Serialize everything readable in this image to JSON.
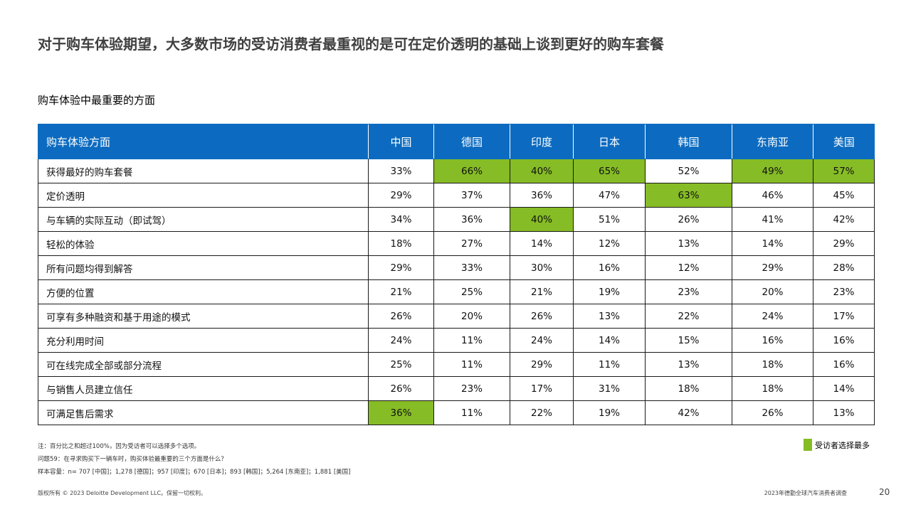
{
  "title": "对于购车体验期望，大多数市场的受访消费者最重视的是可在定价透明的基础上谈到更好的购车套餐",
  "subtitle": "购车体验中最重要的方面",
  "colors": {
    "header_bg": "#0c6bc0",
    "highlight": "#86bc25"
  },
  "table": {
    "headers": [
      "购车体验方面",
      "中国",
      "德国",
      "印度",
      "日本",
      "韩国",
      "东南亚",
      "美国"
    ],
    "rows": [
      {
        "label": "获得最好的购车套餐",
        "values": [
          "33%",
          "66%",
          "40%",
          "65%",
          "52%",
          "49%",
          "57%"
        ],
        "highlight": [
          false,
          true,
          true,
          true,
          false,
          true,
          true
        ]
      },
      {
        "label": "定价透明",
        "values": [
          "29%",
          "37%",
          "36%",
          "47%",
          "63%",
          "46%",
          "45%"
        ],
        "highlight": [
          false,
          false,
          false,
          false,
          true,
          false,
          false
        ]
      },
      {
        "label": "与车辆的实际互动（即试驾）",
        "values": [
          "34%",
          "36%",
          "40%",
          "51%",
          "26%",
          "41%",
          "42%"
        ],
        "highlight": [
          false,
          false,
          true,
          false,
          false,
          false,
          false
        ]
      },
      {
        "label": "轻松的体验",
        "values": [
          "18%",
          "27%",
          "14%",
          "12%",
          "13%",
          "14%",
          "29%"
        ],
        "highlight": [
          false,
          false,
          false,
          false,
          false,
          false,
          false
        ]
      },
      {
        "label": "所有问题均得到解答",
        "values": [
          "29%",
          "33%",
          "30%",
          "16%",
          "12%",
          "29%",
          "28%"
        ],
        "highlight": [
          false,
          false,
          false,
          false,
          false,
          false,
          false
        ]
      },
      {
        "label": "方便的位置",
        "values": [
          "21%",
          "25%",
          "21%",
          "19%",
          "23%",
          "20%",
          "23%"
        ],
        "highlight": [
          false,
          false,
          false,
          false,
          false,
          false,
          false
        ]
      },
      {
        "label": "可享有多种融资和基于用途的模式",
        "values": [
          "26%",
          "20%",
          "26%",
          "13%",
          "22%",
          "24%",
          "17%"
        ],
        "highlight": [
          false,
          false,
          false,
          false,
          false,
          false,
          false
        ]
      },
      {
        "label": "充分利用时间",
        "values": [
          "24%",
          "11%",
          "24%",
          "14%",
          "15%",
          "16%",
          "16%"
        ],
        "highlight": [
          false,
          false,
          false,
          false,
          false,
          false,
          false
        ]
      },
      {
        "label": "可在线完成全部或部分流程",
        "values": [
          "25%",
          "11%",
          "29%",
          "11%",
          "13%",
          "18%",
          "16%"
        ],
        "highlight": [
          false,
          false,
          false,
          false,
          false,
          false,
          false
        ]
      },
      {
        "label": "与销售人员建立信任",
        "values": [
          "26%",
          "23%",
          "17%",
          "31%",
          "18%",
          "18%",
          "14%"
        ],
        "highlight": [
          false,
          false,
          false,
          false,
          false,
          false,
          false
        ]
      },
      {
        "label": "可满足售后需求",
        "values": [
          "36%",
          "11%",
          "22%",
          "19%",
          "42%",
          "26%",
          "13%"
        ],
        "highlight": [
          true,
          false,
          false,
          false,
          false,
          false,
          false
        ]
      }
    ]
  },
  "notes": {
    "note": "注：百分比之和超过100%，因为受访者可以选择多个选项。",
    "question": "问题59：在寻求购买下一辆车时，购买体验最重要的三个方面是什么？",
    "sample": "样本容量：n= 707 [中国]；1,278 [德国]；957 [印度]；670 [日本]；893 [韩国]；5,264 [东南亚]；1,881 [美国]"
  },
  "legend": {
    "label": "受访者选择最多"
  },
  "footer": {
    "copyright": "版权所有 © 2023 Deloitte Development LLC。保留一切权利。",
    "report": "2023年德勤全球汽车消费者调查",
    "page": "20"
  }
}
